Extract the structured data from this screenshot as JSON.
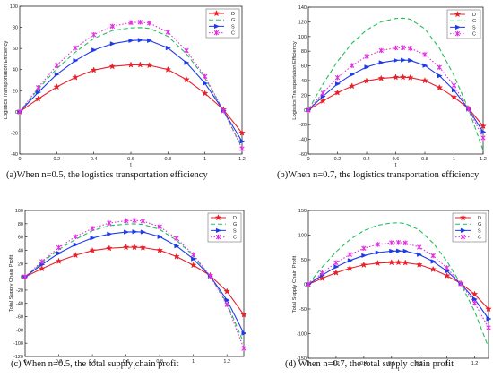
{
  "captions": [
    "(a)When n=0.5, the logistics transportation efficiency",
    "(b)When n=0.7, the logistics transportation efficiency",
    "(c) When n=0.5, the total supply chain profit",
    "(d) When n=0.7, the total supply chain profit"
  ],
  "chart_data": [
    {
      "type": "line",
      "xlabel": "t",
      "ylabel": "Logistics Transportation Efficiency",
      "xlim": [
        0,
        1.2
      ],
      "ylim": [
        -40,
        100
      ],
      "xticks": [
        0,
        0.2,
        0.4,
        0.6,
        0.8,
        1.0,
        1.2
      ],
      "xtick_labels": [
        "0",
        "0.2",
        "0.4",
        "0.6",
        "0.8",
        "1",
        "1.2"
      ],
      "yticks": [
        -40,
        -20,
        0,
        20,
        40,
        60,
        80,
        100
      ],
      "legend": "top-right",
      "grid": false,
      "x": [
        0,
        0.1,
        0.2,
        0.3,
        0.4,
        0.5,
        0.6,
        0.65,
        0.7,
        0.8,
        0.9,
        1.0,
        1.1,
        1.2
      ],
      "series": [
        {
          "name": "D",
          "color": "#e8202a",
          "values": [
            0,
            12.3,
            23.6,
            32.5,
            39.5,
            43.0,
            44.5,
            44.6,
            44.0,
            40.0,
            30.5,
            17.5,
            2.0,
            -20.0
          ]
        },
        {
          "name": "G",
          "color": "#22c05a",
          "values": [
            0,
            21.5,
            41.0,
            56.5,
            69.5,
            77.0,
            79.5,
            79.8,
            79.0,
            71.5,
            55.0,
            32.0,
            1.0,
            -34.0
          ]
        },
        {
          "name": "S",
          "color": "#1f3be8",
          "values": [
            0,
            18.5,
            35.5,
            48.5,
            58.5,
            64.5,
            67.5,
            67.9,
            67.5,
            60.5,
            46.5,
            27.0,
            1.0,
            -28.0
          ]
        },
        {
          "name": "C",
          "color": "#e030e0",
          "values": [
            0,
            23.0,
            44.0,
            60.5,
            73.0,
            81.0,
            84.5,
            84.9,
            84.0,
            75.5,
            58.0,
            33.5,
            1.0,
            -35.0
          ]
        }
      ]
    },
    {
      "type": "line",
      "xlabel": "t",
      "ylabel": "Logistics Transportation Efficiency",
      "xlim": [
        0,
        1.2
      ],
      "ylim": [
        -60,
        140
      ],
      "xticks": [
        0,
        0.2,
        0.4,
        0.6,
        0.8,
        1.0,
        1.2
      ],
      "xtick_labels": [
        "0",
        "0.2",
        "0.4",
        "0.6",
        "0.8",
        "1",
        "1.2"
      ],
      "yticks": [
        -60,
        -40,
        -20,
        0,
        20,
        40,
        60,
        80,
        100,
        120,
        140
      ],
      "legend": "top-right",
      "grid": false,
      "x": [
        0,
        0.1,
        0.2,
        0.3,
        0.4,
        0.5,
        0.6,
        0.65,
        0.7,
        0.8,
        0.9,
        1.0,
        1.1,
        1.2
      ],
      "series": [
        {
          "name": "D",
          "color": "#e8202a",
          "values": [
            0,
            12.3,
            23.6,
            32.5,
            39.5,
            43.0,
            44.5,
            44.6,
            44.0,
            40.0,
            30.5,
            17.5,
            2.0,
            -22.0
          ]
        },
        {
          "name": "G",
          "color": "#22c05a",
          "values": [
            0,
            35.0,
            66.0,
            91.0,
            109.0,
            120.0,
            124.5,
            125.0,
            123.5,
            110.5,
            84.0,
            47.0,
            1.0,
            -55.0
          ]
        },
        {
          "name": "S",
          "color": "#1f3be8",
          "values": [
            0,
            18.5,
            35.5,
            48.5,
            58.5,
            64.5,
            67.5,
            67.9,
            67.5,
            60.5,
            46.5,
            27.0,
            1.0,
            -30.0
          ]
        },
        {
          "name": "C",
          "color": "#e030e0",
          "values": [
            0,
            23.0,
            44.0,
            60.5,
            73.0,
            81.0,
            84.5,
            84.9,
            84.0,
            75.5,
            58.0,
            33.5,
            1.0,
            -38.0
          ]
        }
      ]
    },
    {
      "type": "line",
      "xlabel": "t",
      "ylabel": "Total Supply Chain Profit",
      "xlim": [
        0,
        1.3
      ],
      "ylim": [
        -120,
        100
      ],
      "xticks": [
        0,
        0.2,
        0.4,
        0.6,
        0.8,
        1.0,
        1.2
      ],
      "xtick_labels": [
        "0",
        "0.2",
        "0.4",
        "0.6",
        "0.8",
        "1",
        "1.2"
      ],
      "yticks": [
        -120,
        -100,
        -80,
        -60,
        -40,
        -20,
        0,
        20,
        40,
        60,
        80,
        100
      ],
      "legend": "top-right",
      "grid": false,
      "x": [
        0,
        0.1,
        0.2,
        0.3,
        0.4,
        0.5,
        0.6,
        0.65,
        0.7,
        0.8,
        0.9,
        1.0,
        1.1,
        1.2,
        1.3
      ],
      "series": [
        {
          "name": "D",
          "color": "#e8202a",
          "values": [
            0,
            12.3,
            23.6,
            32.5,
            39.5,
            43.0,
            44.5,
            44.6,
            44.0,
            40.0,
            30.5,
            17.5,
            2.0,
            -22.0,
            -57.0
          ]
        },
        {
          "name": "G",
          "color": "#22c05a",
          "values": [
            0,
            21.5,
            41.0,
            56.5,
            69.5,
            77.0,
            79.5,
            79.8,
            79.0,
            71.5,
            55.0,
            32.0,
            1.0,
            -40.0,
            -100.0
          ]
        },
        {
          "name": "S",
          "color": "#1f3be8",
          "values": [
            0,
            18.5,
            35.5,
            48.5,
            58.5,
            64.5,
            67.5,
            67.9,
            67.5,
            60.5,
            46.5,
            27.0,
            1.0,
            -35.0,
            -85.0
          ]
        },
        {
          "name": "C",
          "color": "#e030e0",
          "values": [
            0,
            23.0,
            44.0,
            60.5,
            73.0,
            81.0,
            84.5,
            84.9,
            84.0,
            75.5,
            58.0,
            33.5,
            1.0,
            -42.0,
            -108.0
          ]
        }
      ]
    },
    {
      "type": "line",
      "xlabel": "t",
      "ylabel": "Total Supply Chain Profit",
      "xlim": [
        0,
        1.3
      ],
      "ylim": [
        -150,
        150
      ],
      "xticks": [
        0,
        0.2,
        0.4,
        0.6,
        0.8,
        1.0,
        1.2
      ],
      "xtick_labels": [
        "0",
        "0.2",
        "0.4",
        "0.6",
        "0.8",
        "1",
        "1.2"
      ],
      "yticks": [
        -150,
        -100,
        -50,
        0,
        50,
        100,
        150
      ],
      "legend": "top-right",
      "grid": false,
      "x": [
        0,
        0.1,
        0.2,
        0.3,
        0.4,
        0.5,
        0.6,
        0.65,
        0.7,
        0.8,
        0.9,
        1.0,
        1.1,
        1.2,
        1.3
      ],
      "series": [
        {
          "name": "D",
          "color": "#e8202a",
          "values": [
            0,
            12.3,
            23.6,
            32.5,
            39.5,
            43.0,
            44.5,
            44.6,
            44.0,
            40.0,
            30.5,
            17.5,
            2.0,
            -20.0,
            -50.0
          ]
        },
        {
          "name": "G",
          "color": "#22c05a",
          "values": [
            0,
            35.0,
            66.0,
            91.0,
            109.0,
            120.0,
            124.5,
            125.0,
            123.5,
            110.5,
            84.0,
            47.0,
            1.0,
            -55.0,
            -128.0
          ]
        },
        {
          "name": "S",
          "color": "#1f3be8",
          "values": [
            0,
            18.5,
            35.5,
            48.5,
            58.5,
            64.5,
            67.5,
            67.9,
            67.5,
            60.5,
            46.5,
            27.0,
            1.0,
            -30.0,
            -70.0
          ]
        },
        {
          "name": "C",
          "color": "#e030e0",
          "values": [
            0,
            23.0,
            44.0,
            60.5,
            73.0,
            81.0,
            84.5,
            84.9,
            84.0,
            75.5,
            58.0,
            33.5,
            1.0,
            -38.0,
            -88.0
          ]
        }
      ]
    }
  ]
}
